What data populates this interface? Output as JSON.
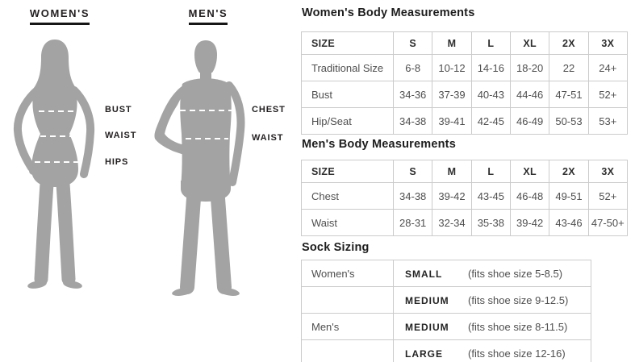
{
  "figures": {
    "silhouette_color": "#a3a3a3",
    "dash_color": "#ffffff",
    "women": {
      "header": "WOMEN'S",
      "labels": [
        "BUST",
        "WAIST",
        "HIPS"
      ]
    },
    "men": {
      "header": "MEN'S",
      "labels": [
        "CHEST",
        "WAIST"
      ]
    }
  },
  "tables": {
    "women_body": {
      "title": "Women's Body Measurements",
      "columns": [
        "SIZE",
        "S",
        "M",
        "L",
        "XL",
        "2X",
        "3X"
      ],
      "rows": [
        {
          "label": "Traditional Size",
          "values": [
            "6-8",
            "10-12",
            "14-16",
            "18-20",
            "22",
            "24+"
          ]
        },
        {
          "label": "Bust",
          "values": [
            "34-36",
            "37-39",
            "40-43",
            "44-46",
            "47-51",
            "52+"
          ]
        },
        {
          "label": "Hip/Seat",
          "values": [
            "34-38",
            "39-41",
            "42-45",
            "46-49",
            "50-53",
            "53+"
          ]
        }
      ]
    },
    "men_body": {
      "title": "Men's Body Measurements",
      "columns": [
        "SIZE",
        "S",
        "M",
        "L",
        "XL",
        "2X",
        "3X"
      ],
      "rows": [
        {
          "label": "Chest",
          "values": [
            "34-38",
            "39-42",
            "43-45",
            "46-48",
            "49-51",
            "52+"
          ]
        },
        {
          "label": "Waist",
          "values": [
            "28-31",
            "32-34",
            "35-38",
            "39-42",
            "43-46",
            "47-50+"
          ]
        }
      ]
    },
    "sock": {
      "title": "Sock Sizing",
      "rows": [
        {
          "group": "Women's",
          "size": "SMALL",
          "fits": "(fits shoe size 5-8.5)"
        },
        {
          "group": "",
          "size": "MEDIUM",
          "fits": "(fits shoe size 9-12.5)"
        },
        {
          "group": "Men's",
          "size": "MEDIUM",
          "fits": "(fits shoe size 8-11.5)"
        },
        {
          "group": "",
          "size": "LARGE",
          "fits": "(fits shoe size 12-16)"
        }
      ]
    }
  }
}
